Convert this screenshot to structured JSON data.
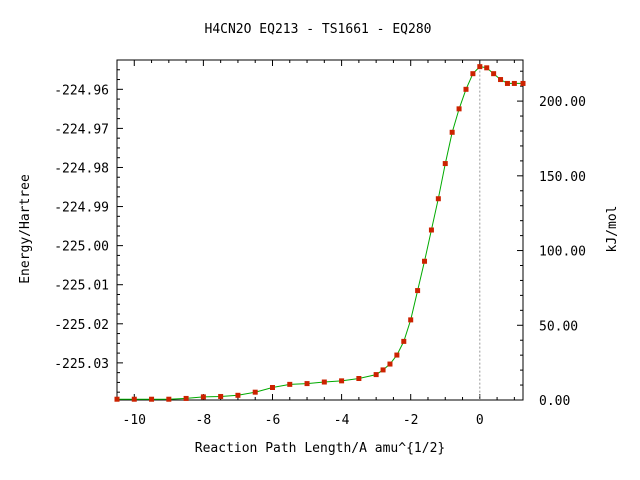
{
  "chart_data": {
    "type": "line",
    "title": "H4CN2O   EQ213 - TS1661 - EQ280",
    "xlabel": "Reaction Path Length/A amu^{1/2}",
    "ylabel": "Energy/Hartree",
    "y2label": "kJ/mol",
    "xlim": [
      -10.5,
      1.25
    ],
    "ylim": [
      -225.0395,
      -224.9525
    ],
    "y2lim": [
      0,
      227.5
    ],
    "x_ticks": [
      -10,
      -8,
      -6,
      -4,
      -2,
      0
    ],
    "x_tick_labels": [
      "-10",
      "-8",
      "-6",
      "-4",
      "-2",
      "0"
    ],
    "y_ticks": [
      -224.96,
      -224.97,
      -224.98,
      -224.99,
      -225.0,
      -225.01,
      -225.02,
      -225.03
    ],
    "y_tick_labels": [
      "-224.96",
      "-224.97",
      "-224.98",
      "-224.99",
      "-225.00",
      "-225.01",
      "-225.02",
      "-225.03"
    ],
    "y2_ticks": [
      0,
      50,
      100,
      150,
      200
    ],
    "y2_tick_labels": [
      "0.00",
      "50.00",
      "100.00",
      "150.00",
      "200.00"
    ],
    "ts_x": 0,
    "grid": false,
    "line_color": "#00aa00",
    "marker_color": "#cc2200",
    "series": [
      {
        "x": [
          -10.5,
          -10.0,
          -9.5,
          -9.0,
          -8.5,
          -8.0,
          -7.5,
          -7.0,
          -6.5,
          -6.0,
          -5.5,
          -5.0,
          -4.5,
          -4.0,
          -3.5,
          -3.0,
          -2.8,
          -2.6,
          -2.4,
          -2.2,
          -2.0,
          -1.8,
          -1.6,
          -1.4,
          -1.2,
          -1.0,
          -0.8,
          -0.6,
          -0.4,
          -0.2,
          0.0,
          0.2,
          0.4,
          0.6,
          0.8,
          1.0,
          1.25
        ],
        "y": [
          -225.0393,
          -225.0393,
          -225.0393,
          -225.0393,
          -225.0391,
          -225.0387,
          -225.0386,
          -225.0383,
          -225.0375,
          -225.0363,
          -225.0355,
          -225.0353,
          -225.0349,
          -225.0346,
          -225.034,
          -225.033,
          -225.0318,
          -225.0303,
          -225.028,
          -225.0245,
          -225.019,
          -225.0115,
          -225.004,
          -224.996,
          -224.988,
          -224.979,
          -224.971,
          -224.965,
          -224.96,
          -224.956,
          -224.9542,
          -224.9545,
          -224.956,
          -224.9575,
          -224.9585,
          -224.9585,
          -224.9585
        ]
      }
    ]
  }
}
